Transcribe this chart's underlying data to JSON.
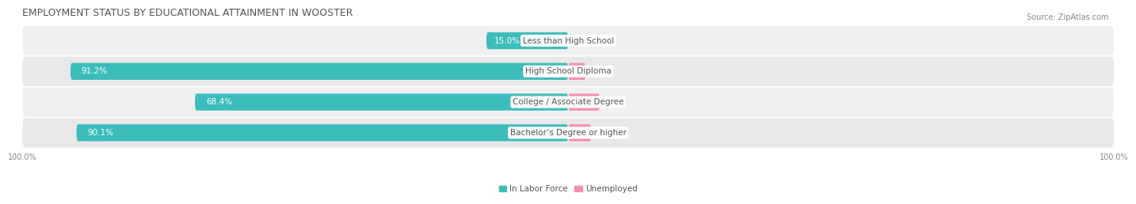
{
  "title": "EMPLOYMENT STATUS BY EDUCATIONAL ATTAINMENT IN WOOSTER",
  "source": "Source: ZipAtlas.com",
  "categories": [
    "Less than High School",
    "High School Diploma",
    "College / Associate Degree",
    "Bachelor’s Degree or higher"
  ],
  "labor_force": [
    15.0,
    91.2,
    68.4,
    90.1
  ],
  "unemployed": [
    0.0,
    3.2,
    5.8,
    4.2
  ],
  "labor_color": "#3dbcbc",
  "unemployed_color": "#f48fb1",
  "row_bg_colors": [
    "#f0f0f0",
    "#e8e8e8",
    "#f0f0f0",
    "#e8e8e8"
  ],
  "max_val": 100.0,
  "title_fontsize": 9,
  "bar_label_fontsize": 7.5,
  "cat_label_fontsize": 7.5,
  "tick_fontsize": 7,
  "legend_fontsize": 7.5,
  "source_fontsize": 7,
  "title_color": "#555555",
  "bar_label_color": "#ffffff",
  "cat_label_color": "#555555",
  "tick_color": "#888888",
  "left_axis_label": "100.0%",
  "right_axis_label": "100.0%"
}
